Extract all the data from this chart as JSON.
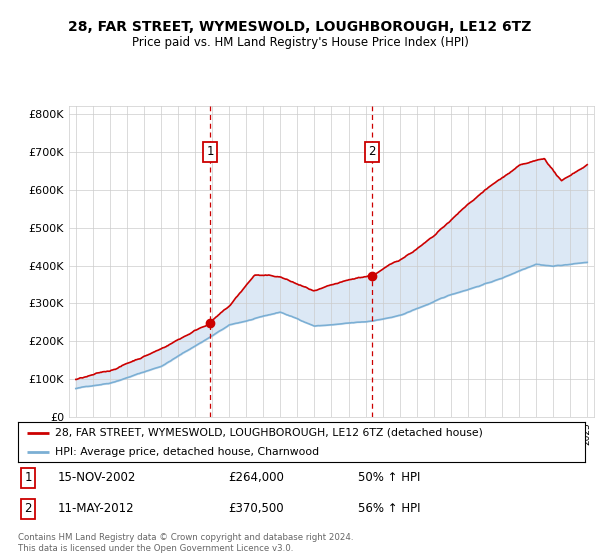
{
  "title": "28, FAR STREET, WYMESWOLD, LOUGHBOROUGH, LE12 6TZ",
  "subtitle": "Price paid vs. HM Land Registry's House Price Index (HPI)",
  "legend_line1": "28, FAR STREET, WYMESWOLD, LOUGHBOROUGH, LE12 6TZ (detached house)",
  "legend_line2": "HPI: Average price, detached house, Charnwood",
  "sale1_date": "15-NOV-2002",
  "sale1_price": "£264,000",
  "sale1_hpi": "50% ↑ HPI",
  "sale2_date": "11-MAY-2012",
  "sale2_price": "£370,500",
  "sale2_hpi": "56% ↑ HPI",
  "copyright": "Contains HM Land Registry data © Crown copyright and database right 2024.\nThis data is licensed under the Open Government Licence v3.0.",
  "sale1_year": 2002.88,
  "sale2_year": 2012.37,
  "sale1_price_val": 264000,
  "sale2_price_val": 370500,
  "red_color": "#cc0000",
  "blue_color": "#7bafd4",
  "shade_color": "#dce8f5",
  "bg_color": "#ffffff",
  "grid_color": "#cccccc",
  "ylim": [
    0,
    820000
  ],
  "xlim_start": 1994.6,
  "xlim_end": 2025.4,
  "marker_y": 700000,
  "yticks": [
    0,
    100000,
    200000,
    300000,
    400000,
    500000,
    600000,
    700000,
    800000
  ],
  "ylabels": [
    "£0",
    "£100K",
    "£200K",
    "£300K",
    "£400K",
    "£500K",
    "£600K",
    "£700K",
    "£800K"
  ]
}
